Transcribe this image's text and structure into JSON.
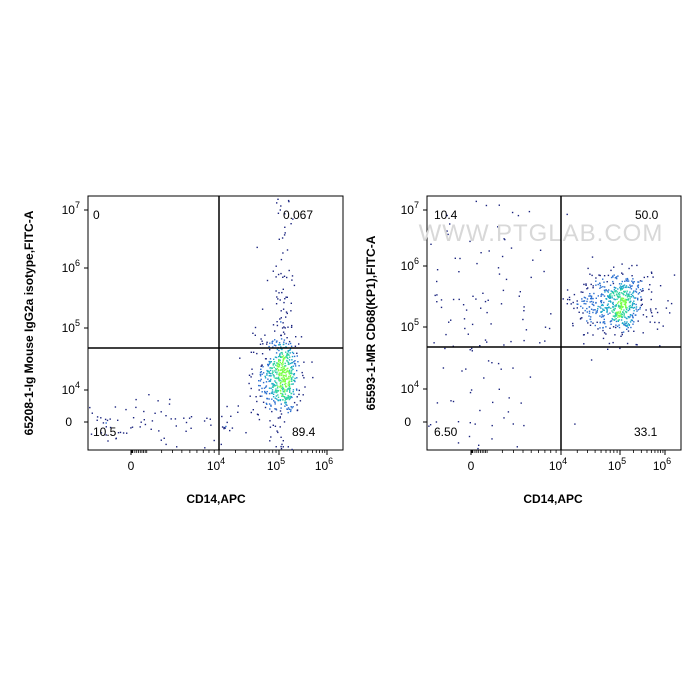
{
  "chart_data": [
    {
      "type": "scatter",
      "title": "",
      "xlabel": "CD14,APC",
      "ylabel": "65208-1-Ig Mouse IgG2a isotype,FITC-A",
      "x_ticks": [
        {
          "value": 0,
          "base": "0",
          "exp": ""
        },
        {
          "value": 10000,
          "base": "10",
          "exp": "4"
        },
        {
          "value": 100000,
          "base": "10",
          "exp": "5"
        },
        {
          "value": 1000000,
          "base": "10",
          "exp": "6"
        }
      ],
      "y_ticks": [
        {
          "value": 0,
          "base": "0",
          "exp": ""
        },
        {
          "value": 10000,
          "base": "10",
          "exp": "4"
        },
        {
          "value": 100000,
          "base": "10",
          "exp": "5"
        },
        {
          "value": 1000000,
          "base": "10",
          "exp": "6"
        },
        {
          "value": 10000000,
          "base": "10",
          "exp": "7"
        }
      ],
      "quadrants": {
        "upper_left": "0",
        "upper_right": "0.067",
        "lower_left": "10.5",
        "lower_right": "89.4"
      },
      "gate": {
        "x": 10000,
        "y": 40000
      },
      "populations": [
        {
          "x": 0,
          "y": 0,
          "x_spread": 0.25,
          "y_spread": 0.1,
          "n": 120
        },
        {
          "x": 110000,
          "y": 18000,
          "x_spread": 0.08,
          "y_spread": 0.12,
          "n": 500
        },
        {
          "x": 110000,
          "y": 300,
          "x_spread": 0.05,
          "y_spread": 1.0,
          "n": 220
        }
      ]
    },
    {
      "type": "scatter",
      "title": "",
      "xlabel": "CD14,APC",
      "ylabel": "65593-1-MR CD68(KP1),FITC-A",
      "x_ticks": [
        {
          "value": 0,
          "base": "0",
          "exp": ""
        },
        {
          "value": 10000,
          "base": "10",
          "exp": "4"
        },
        {
          "value": 100000,
          "base": "10",
          "exp": "5"
        },
        {
          "value": 1000000,
          "base": "10",
          "exp": "6"
        }
      ],
      "y_ticks": [
        {
          "value": 0,
          "base": "0",
          "exp": ""
        },
        {
          "value": 10000,
          "base": "10",
          "exp": "4"
        },
        {
          "value": 100000,
          "base": "10",
          "exp": "5"
        },
        {
          "value": 1000000,
          "base": "10",
          "exp": "6"
        },
        {
          "value": 10000000,
          "base": "10",
          "exp": "7"
        }
      ],
      "quadrants": {
        "upper_left": "10.4",
        "upper_right": "50.0",
        "lower_left": "6.50",
        "lower_right": "33.1"
      },
      "gate": {
        "x": 10000,
        "y": 40000
      },
      "watermark": "WWW.PTGLAB.COM",
      "populations": [
        {
          "x": 90000,
          "y": 260000,
          "x_spread": 0.12,
          "y_spread": 0.1,
          "n": 550
        },
        {
          "x": 0,
          "y": 8000,
          "x_spread": 0.12,
          "y_spread": 1.2,
          "n": 220
        },
        {
          "x": 3000,
          "y": 160000,
          "x_spread": 0.8,
          "y_spread": 0.15,
          "n": 160
        }
      ]
    }
  ]
}
